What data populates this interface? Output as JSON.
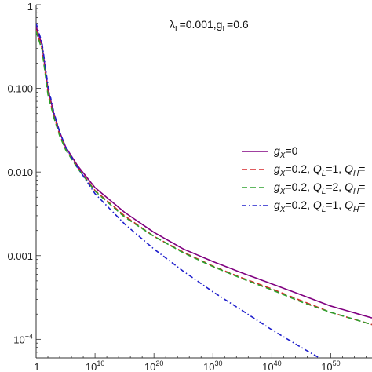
{
  "chart_data": {
    "type": "line",
    "title": "",
    "xlabel": "",
    "ylabel": "",
    "annotation": "λL=0.001,gL=0.6",
    "x_scale": "log",
    "y_scale": "log",
    "xlim": [
      1,
      1e+57
    ],
    "ylim": [
      6e-05,
      1
    ],
    "x_ticks": [
      {
        "value": 1,
        "label": "1"
      },
      {
        "value": 10000000000.0,
        "label": "10^10"
      },
      {
        "value": 1e+20,
        "label": "10^20"
      },
      {
        "value": 1e+30,
        "label": "10^30"
      },
      {
        "value": 1e+40,
        "label": "10^40"
      },
      {
        "value": 1e+50,
        "label": "10^50"
      }
    ],
    "y_ticks": [
      {
        "value": 1,
        "label": "1"
      },
      {
        "value": 0.1,
        "label": "0.100"
      },
      {
        "value": 0.01,
        "label": "0.010"
      },
      {
        "value": 0.001,
        "label": "0.001"
      },
      {
        "value": 0.0001,
        "label": "10^-4"
      }
    ],
    "legend_position": "right",
    "series": [
      {
        "name": "gX=0",
        "color": "#800080",
        "dash": "solid",
        "x": [
          1,
          10.0,
          100.0,
          1000.0,
          10000.0,
          100000.0,
          10000000.0,
          10000000000.0,
          1000000000000000.0,
          1e+20,
          1e+25,
          1e+30,
          1e+35,
          1e+40,
          1e+45,
          1e+50,
          1e+57
        ],
        "y": [
          0.55,
          0.33,
          0.1,
          0.05,
          0.03,
          0.02,
          0.012,
          0.0065,
          0.0033,
          0.0019,
          0.0012,
          0.00085,
          0.00062,
          0.00046,
          0.00034,
          0.00025,
          0.00018
        ]
      },
      {
        "name": "gX=0.2, QL=1, QH=",
        "color": "#d62728",
        "dash": "dashed",
        "x": [
          1,
          10.0,
          100.0,
          1000.0,
          10000.0,
          100000.0,
          10000000.0,
          10000000000.0,
          1000000000000000.0,
          1e+20,
          1e+25,
          1e+30,
          1e+35,
          1e+40,
          1e+45,
          1e+50,
          1e+57
        ],
        "y": [
          0.5,
          0.3,
          0.09,
          0.047,
          0.028,
          0.019,
          0.0115,
          0.006,
          0.003,
          0.0017,
          0.0011,
          0.00075,
          0.00054,
          0.0004,
          0.00029,
          0.00021,
          0.00015
        ]
      },
      {
        "name": "gX=0.2, QL=2, QH=",
        "color": "#2ca02c",
        "dash": "dashed",
        "x": [
          1,
          10.0,
          100.0,
          1000.0,
          10000.0,
          100000.0,
          10000000.0,
          10000000000.0,
          1000000000000000.0,
          1e+20,
          1e+25,
          1e+30,
          1e+35,
          1e+40,
          1e+45,
          1e+50,
          1e+57
        ],
        "y": [
          0.48,
          0.29,
          0.085,
          0.045,
          0.027,
          0.0185,
          0.0112,
          0.0059,
          0.0029,
          0.0017,
          0.00108,
          0.00074,
          0.00053,
          0.00039,
          0.00028,
          0.00021,
          0.00015
        ]
      },
      {
        "name": "gX=0.2, QL=1, QH=",
        "color": "#1f1fcc",
        "dash": "dashdot",
        "x": [
          1,
          10.0,
          100.0,
          1000.0,
          10000.0,
          100000.0,
          10000000.0,
          10000000000.0,
          1000000000000000.0,
          1e+20,
          1e+25,
          1e+30,
          1e+35,
          1e+40,
          1e+45,
          1e+50,
          1e+57
        ],
        "y": [
          0.6,
          0.35,
          0.11,
          0.052,
          0.03,
          0.02,
          0.0115,
          0.0055,
          0.0024,
          0.0012,
          0.00065,
          0.00037,
          0.00022,
          0.00013,
          8e-05,
          5e-05,
          3e-05
        ]
      }
    ]
  },
  "legend_entries": [
    {
      "g": "g",
      "gsub": "X",
      "rest": "=0"
    },
    {
      "g": "g",
      "gsub": "X",
      "rest": "=0.2, ",
      "q1": "Q",
      "q1sub": "L",
      "q1rest": "=1, ",
      "q2": "Q",
      "q2sub": "H",
      "q2rest": "="
    },
    {
      "g": "g",
      "gsub": "X",
      "rest": "=0.2, ",
      "q1": "Q",
      "q1sub": "L",
      "q1rest": "=2, ",
      "q2": "Q",
      "q2sub": "H",
      "q2rest": "="
    },
    {
      "g": "g",
      "gsub": "X",
      "rest": "=0.2, ",
      "q1": "Q",
      "q1sub": "L",
      "q1rest": "=1, ",
      "q2": "Q",
      "q2sub": "H",
      "q2rest": "="
    }
  ],
  "annotation_parts": {
    "a": "λ",
    "asub": "L",
    "arest": "=0.001,",
    "b": "g",
    "bsub": "L",
    "brest": "=0.6"
  }
}
